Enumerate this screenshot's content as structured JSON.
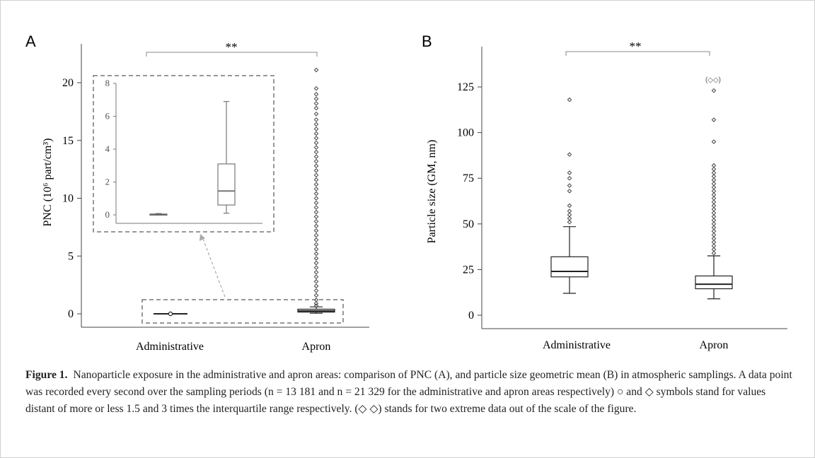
{
  "panel_a": {
    "label": "A",
    "ylabel": "PNC (10⁶ part/cm³)",
    "yticks": [
      "0",
      "5",
      "10",
      "15",
      "20"
    ],
    "categories": [
      "Administrative",
      "Apron"
    ],
    "significance": "**",
    "inset_yticks": [
      "0",
      "2",
      "4",
      "6",
      "8"
    ]
  },
  "panel_b": {
    "label": "B",
    "ylabel": "Particle size (GM, nm)",
    "yticks": [
      "0",
      "25",
      "50",
      "75",
      "100",
      "125"
    ],
    "categories": [
      "Administrative",
      "Apron"
    ],
    "significance": "**",
    "extreme_label": "(◇◇)"
  },
  "caption": {
    "label": "Figure 1.",
    "text": "Nanoparticle exposure in the administrative and apron areas: comparison of PNC (A), and particle size geometric mean (B) in atmospheric samplings. A data point was recorded every second over the sampling periods (n = 13 181 and n = 21 329 for the administrative and apron areas respectively) ○ and ◇ symbols stand for values distant of more or less 1.5 and 3 times the interquartile range respectively. (◇ ◇) stands for two extreme data out of the scale of the figure."
  },
  "chart_data": [
    {
      "type": "box",
      "ylabel": "PNC (10⁶ part/cm³)",
      "ylim": [
        -1.2,
        22.5
      ],
      "categories": [
        "Administrative",
        "Apron"
      ],
      "boxes": [
        {
          "category": "Administrative",
          "min": -0.05,
          "q1": -0.02,
          "median": 0.0,
          "q3": 0.02,
          "max": 0.05,
          "outliers": [
            0.0
          ]
        },
        {
          "category": "Apron",
          "min": 0.05,
          "q1": 0.15,
          "median": 0.25,
          "q3": 0.4,
          "max": 0.6,
          "outliers": [
            21.1,
            19.5,
            19.0,
            18.6,
            18.2,
            17.8,
            17.3,
            16.8,
            16.4,
            16.0,
            15.6,
            15.2,
            14.8,
            14.4,
            14.0,
            13.6,
            13.2,
            12.8,
            12.4,
            12.0,
            11.6,
            11.2,
            10.8,
            10.4,
            10.0,
            9.6,
            9.2,
            8.8,
            8.4,
            8.0,
            7.6,
            7.2,
            6.8,
            6.4,
            6.0,
            5.6,
            5.2,
            4.8,
            4.4,
            4.0,
            3.6,
            3.2,
            2.8,
            2.4,
            2.0,
            1.6,
            1.2,
            0.9,
            0.7
          ]
        }
      ],
      "significance": "**",
      "inset": {
        "ylim": [
          -0.5,
          8.2
        ],
        "yticks": [
          0,
          2,
          4,
          6,
          8
        ],
        "boxes": [
          {
            "category": "Administrative",
            "min": 0.0,
            "q1": 0.0,
            "median": 0.02,
            "q3": 0.05,
            "max": 0.08
          },
          {
            "category": "Apron",
            "min": 0.1,
            "q1": 0.6,
            "median": 1.45,
            "q3": 3.1,
            "max": 6.9
          }
        ]
      }
    },
    {
      "type": "box",
      "ylabel": "Particle size (GM, nm)",
      "ylim": [
        -5,
        145
      ],
      "categories": [
        "Administrative",
        "Apron"
      ],
      "boxes": [
        {
          "category": "Administrative",
          "min": 12,
          "q1": 21,
          "median": 24,
          "q3": 32,
          "max": 48.5,
          "outliers": [
            118,
            88,
            78,
            75,
            71,
            68,
            60,
            57,
            55,
            53,
            51
          ]
        },
        {
          "category": "Apron",
          "min": 9,
          "q1": 14.5,
          "median": 17,
          "q3": 21.5,
          "max": 32.5,
          "outliers": [
            123,
            107,
            95,
            82,
            80,
            78,
            76,
            74,
            72,
            70,
            68,
            66,
            64,
            62,
            60,
            58,
            56,
            54,
            52,
            50,
            48,
            46,
            44,
            42,
            40,
            38,
            36,
            34
          ]
        }
      ],
      "significance": "**"
    }
  ]
}
